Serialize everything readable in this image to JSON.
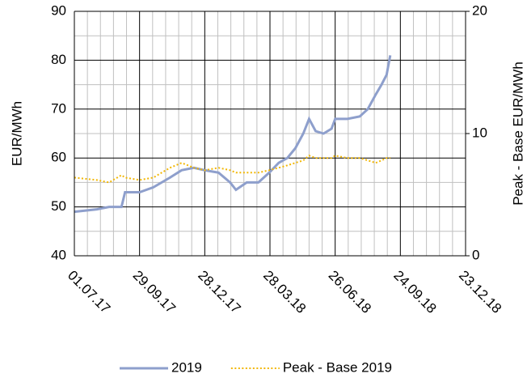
{
  "chart_data": {
    "type": "line",
    "y_label": "EUR/MWh",
    "y2_label": "Peak - Base EUR/MWh",
    "x": [
      "01.07.17",
      "01.08.17",
      "18.08.17",
      "04.09.17",
      "09.09.17",
      "29.09.17",
      "18.10.17",
      "10.11.17",
      "26.11.17",
      "13.12.17",
      "28.12.17",
      "16.01.18",
      "01.02.18",
      "09.02.18",
      "24.02.18",
      "12.03.18",
      "27.03.18",
      "09.04.18",
      "21.04.18",
      "02.05.18",
      "13.05.18",
      "21.05.18",
      "30.05.18",
      "10.06.18",
      "21.06.18",
      "26.06.18",
      "13.07.18",
      "30.07.18",
      "10.08.18",
      "21.08.18",
      "29.08.18",
      "05.09.18",
      "10.09.18"
    ],
    "series": [
      {
        "name": "2019",
        "color": "#8e9fcc",
        "axis": "y",
        "values": [
          49,
          49.5,
          50,
          50,
          53,
          53,
          54,
          56,
          57.5,
          58,
          57.5,
          57,
          55,
          53.5,
          55,
          55,
          57,
          59,
          60,
          62,
          65,
          68,
          65.5,
          65,
          66,
          68,
          68,
          68.5,
          70,
          73,
          75,
          77,
          81
        ]
      },
      {
        "name": "Peak - Base 2019",
        "color": "#f2b705",
        "axis": "y2",
        "values": [
          6.4,
          6.2,
          6.0,
          6.6,
          6.4,
          6.2,
          6.4,
          7.2,
          7.6,
          7.2,
          7.0,
          7.2,
          7.0,
          6.8,
          6.8,
          6.8,
          7.0,
          7.2,
          7.4,
          7.6,
          7.8,
          8.2,
          8.0,
          8.0,
          8.0,
          8.2,
          8.0,
          8.0,
          7.8,
          7.6,
          7.8,
          8.0,
          8.0
        ]
      }
    ],
    "xlim": [
      "01.07.17",
      "23.12.18"
    ],
    "xticks": [
      "01.07.17",
      "29.09.17",
      "28.12.17",
      "28.03.18",
      "26.06.18",
      "24.09.18",
      "23.12.18"
    ],
    "ylim": [
      40,
      90
    ],
    "yticks": [
      40,
      50,
      60,
      70,
      80,
      90
    ],
    "y2lim": [
      0,
      20
    ],
    "y2ticks": [
      0,
      10,
      20
    ],
    "grid": true,
    "legend": "bottom"
  }
}
